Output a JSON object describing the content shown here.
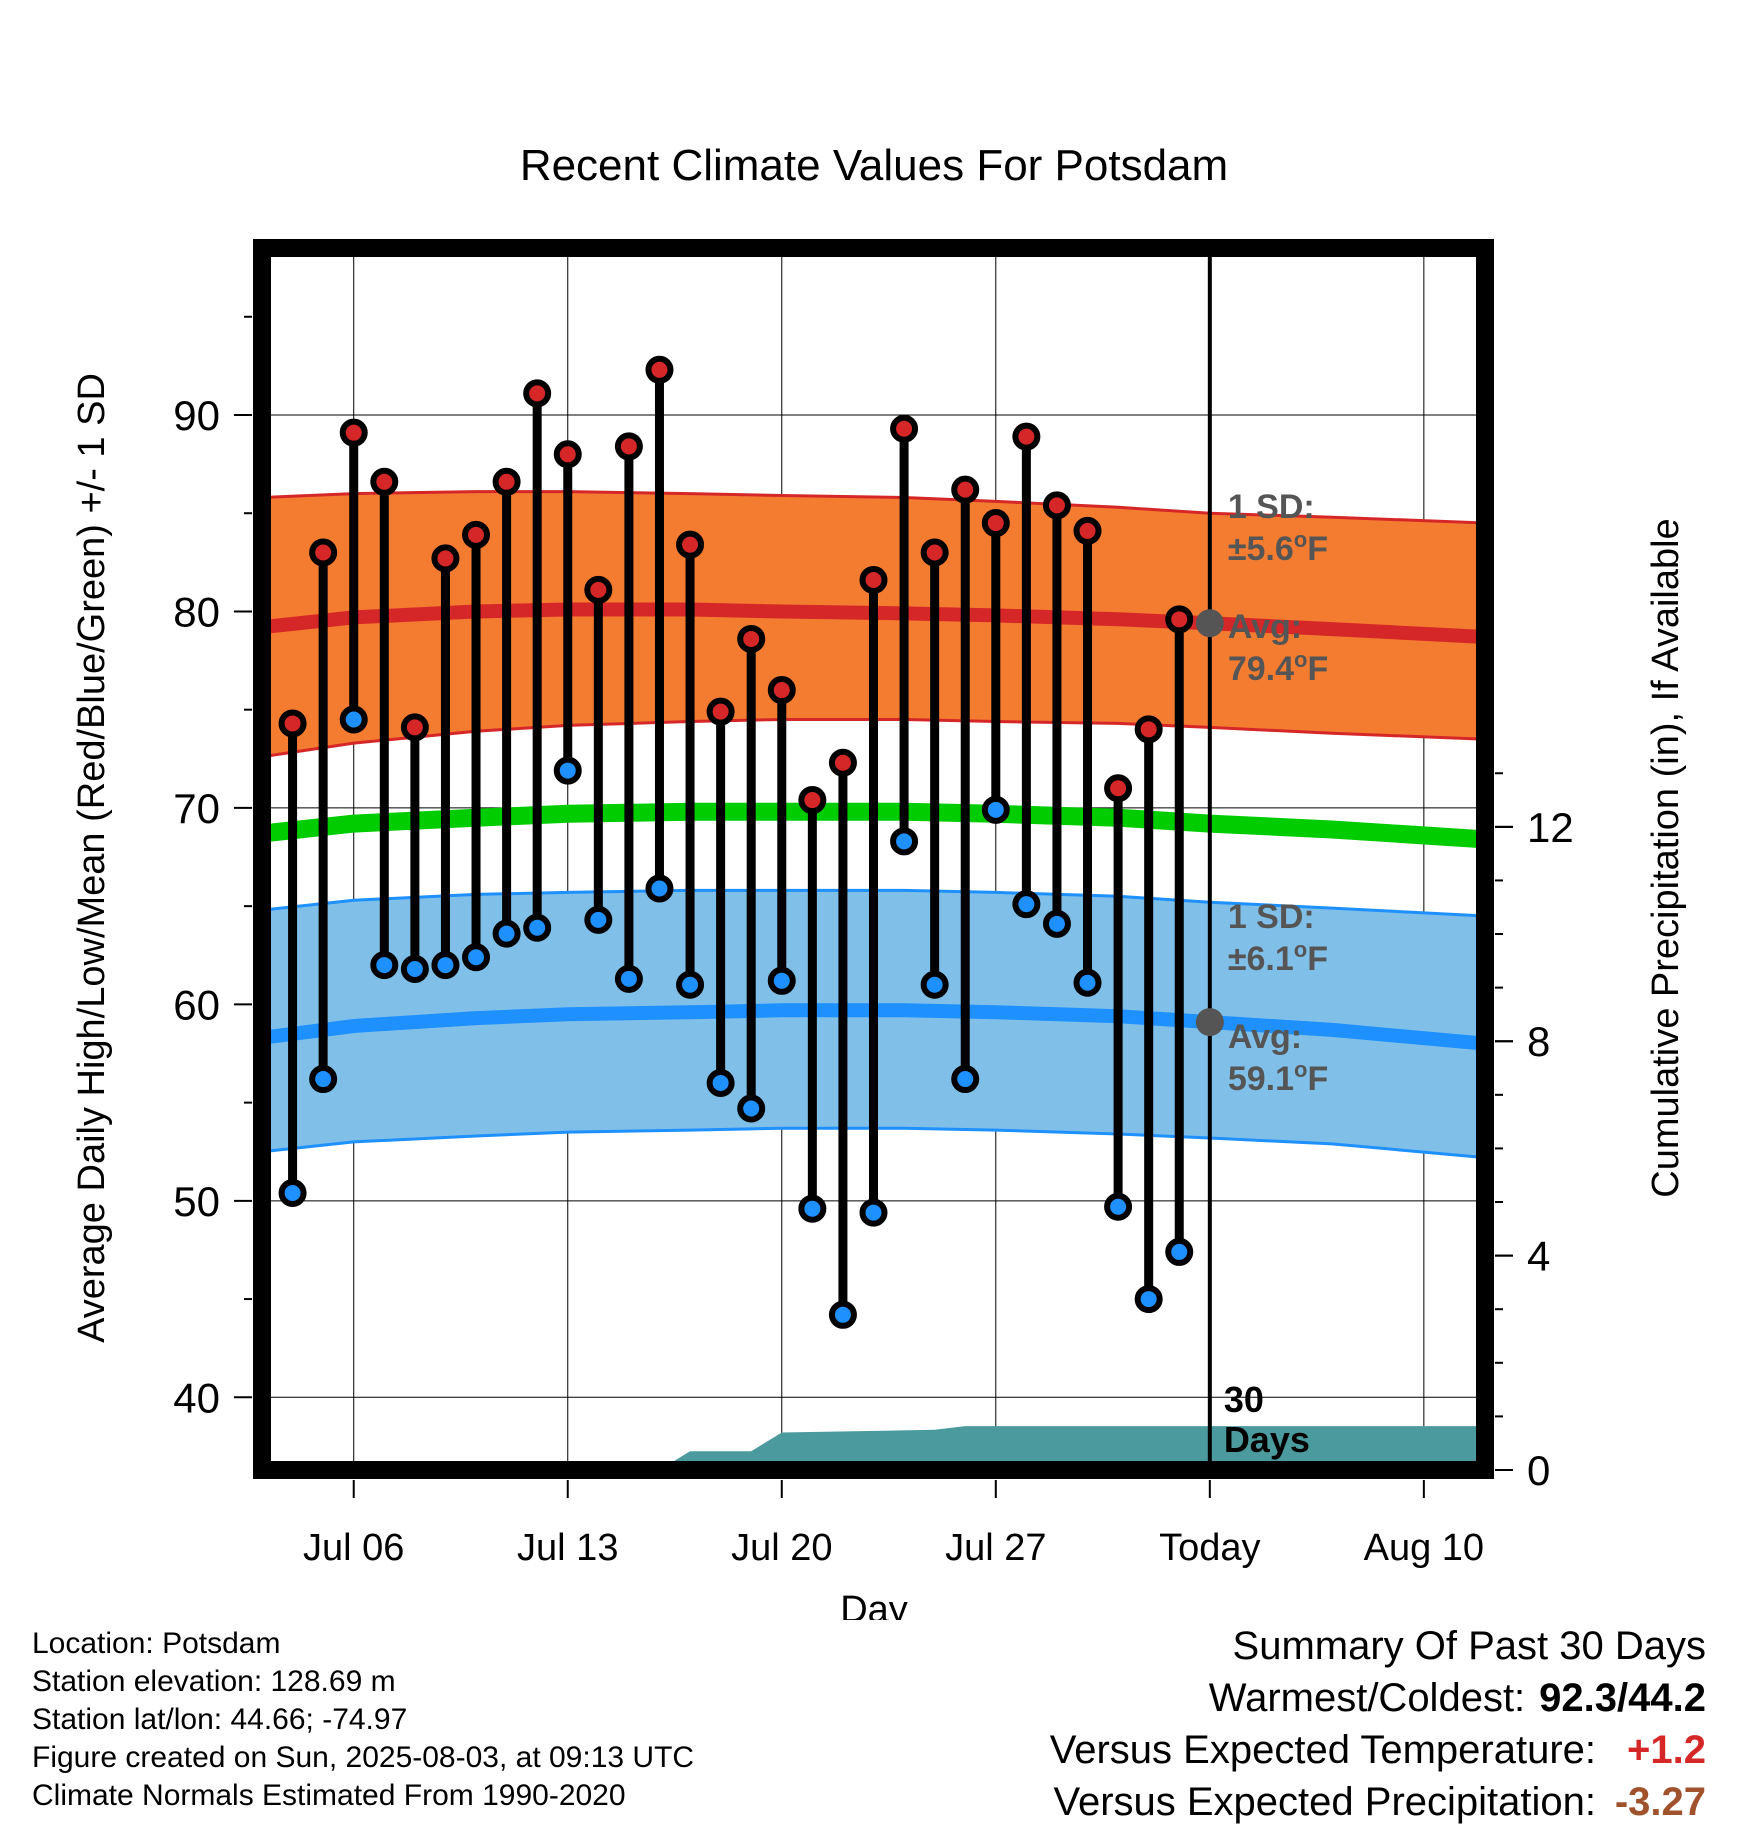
{
  "chart_data": {
    "type": "line",
    "title": "Recent Climate Values For Potsdam",
    "xlabel": "Day",
    "ylabel": "Average Daily High/Low/Mean (Red/Blue/Green) +/- 1 SD",
    "y2label": "Cumulative Precipitation (in), If Available",
    "ylim": [
      36.3,
      98.5
    ],
    "y2lim": [
      0,
      22.8
    ],
    "yticks": [
      40,
      50,
      60,
      70,
      80,
      90
    ],
    "y2ticks": [
      0,
      4,
      8,
      12
    ],
    "xlim": [
      "Jul 03",
      "Aug 12"
    ],
    "xticks": [
      {
        "date": "Jul 06",
        "label": "Jul 06"
      },
      {
        "date": "Jul 13",
        "label": "Jul 13"
      },
      {
        "date": "Jul 20",
        "label": "Jul 20"
      },
      {
        "date": "Jul 27",
        "label": "Jul 27"
      },
      {
        "date": "Aug 03",
        "label": "Today"
      },
      {
        "date": "Aug 10",
        "label": "Aug 10"
      }
    ],
    "grid": true,
    "today": "Aug 03",
    "today_label": [
      "30",
      "Days"
    ],
    "colors": {
      "high": "#d62728",
      "low": "#1e90ff",
      "mean": "#00cc00",
      "high_band": "#f47c31",
      "low_band": "#80c0e8",
      "precip": "#4a9a9e",
      "annotation": "#555555"
    },
    "daily": [
      {
        "date": "Jul 04",
        "high": 74.3,
        "low": 50.4
      },
      {
        "date": "Jul 05",
        "high": 83.0,
        "low": 56.2
      },
      {
        "date": "Jul 06",
        "high": 89.1,
        "low": 74.5
      },
      {
        "date": "Jul 07",
        "high": 86.6,
        "low": 62.0
      },
      {
        "date": "Jul 08",
        "high": 74.1,
        "low": 61.8
      },
      {
        "date": "Jul 09",
        "high": 82.7,
        "low": 62.0
      },
      {
        "date": "Jul 10",
        "high": 83.9,
        "low": 62.4
      },
      {
        "date": "Jul 11",
        "high": 86.6,
        "low": 63.6
      },
      {
        "date": "Jul 12",
        "high": 91.1,
        "low": 63.9
      },
      {
        "date": "Jul 13",
        "high": 88.0,
        "low": 71.9
      },
      {
        "date": "Jul 14",
        "high": 81.1,
        "low": 64.3
      },
      {
        "date": "Jul 15",
        "high": 88.4,
        "low": 61.3
      },
      {
        "date": "Jul 16",
        "high": 92.3,
        "low": 65.9
      },
      {
        "date": "Jul 17",
        "high": 83.4,
        "low": 61.0
      },
      {
        "date": "Jul 18",
        "high": 74.9,
        "low": 56.0
      },
      {
        "date": "Jul 19",
        "high": 78.6,
        "low": 54.7
      },
      {
        "date": "Jul 20",
        "high": 76.0,
        "low": 61.2
      },
      {
        "date": "Jul 21",
        "high": 70.4,
        "low": 49.6
      },
      {
        "date": "Jul 22",
        "high": 72.3,
        "low": 44.2
      },
      {
        "date": "Jul 23",
        "high": 81.6,
        "low": 49.4
      },
      {
        "date": "Jul 24",
        "high": 89.3,
        "low": 68.3
      },
      {
        "date": "Jul 25",
        "high": 83.0,
        "low": 61.0
      },
      {
        "date": "Jul 26",
        "high": 86.2,
        "low": 56.2
      },
      {
        "date": "Jul 27",
        "high": 84.5,
        "low": 69.9
      },
      {
        "date": "Jul 28",
        "high": 88.9,
        "low": 65.1
      },
      {
        "date": "Jul 29",
        "high": 85.4,
        "low": 64.1
      },
      {
        "date": "Jul 30",
        "high": 84.1,
        "low": 61.1
      },
      {
        "date": "Jul 31",
        "high": 71.0,
        "low": 49.7
      },
      {
        "date": "Aug 01",
        "high": 74.0,
        "low": 45.0
      },
      {
        "date": "Aug 02",
        "high": 79.6,
        "low": 47.4
      }
    ],
    "normals": {
      "dates": [
        "Jul 03",
        "Jul 06",
        "Jul 10",
        "Jul 13",
        "Jul 17",
        "Jul 20",
        "Jul 24",
        "Jul 27",
        "Jul 31",
        "Aug 03",
        "Aug 07",
        "Aug 12"
      ],
      "high_avg": [
        79.2,
        79.7,
        80.0,
        80.1,
        80.1,
        80.0,
        79.9,
        79.8,
        79.6,
        79.4,
        79.1,
        78.7
      ],
      "high_sd_upper": [
        85.8,
        86.0,
        86.1,
        86.1,
        86.0,
        85.9,
        85.8,
        85.6,
        85.3,
        85.0,
        84.8,
        84.5
      ],
      "high_sd_lower": [
        72.6,
        73.3,
        73.9,
        74.2,
        74.4,
        74.5,
        74.5,
        74.4,
        74.3,
        74.1,
        73.8,
        73.5
      ],
      "mean_avg": [
        68.7,
        69.2,
        69.5,
        69.7,
        69.8,
        69.8,
        69.8,
        69.7,
        69.5,
        69.2,
        68.9,
        68.4
      ],
      "low_avg": [
        58.3,
        58.9,
        59.3,
        59.5,
        59.6,
        59.7,
        59.7,
        59.6,
        59.4,
        59.1,
        58.7,
        58.0
      ],
      "low_sd_upper": [
        64.8,
        65.3,
        65.6,
        65.7,
        65.8,
        65.8,
        65.8,
        65.7,
        65.5,
        65.2,
        64.9,
        64.5
      ],
      "low_sd_lower": [
        52.5,
        53.0,
        53.3,
        53.5,
        53.6,
        53.7,
        53.7,
        53.6,
        53.4,
        53.2,
        52.9,
        52.2
      ]
    },
    "precip_cumulative": {
      "dates": [
        "Jul 03",
        "Jul 16",
        "Jul 17",
        "Jul 19",
        "Jul 20",
        "Jul 25",
        "Jul 26",
        "Aug 12"
      ],
      "values": [
        0,
        0,
        0.35,
        0.35,
        0.7,
        0.75,
        0.82,
        0.82
      ]
    },
    "annotations": {
      "high": {
        "sd": "±5.6",
        "avg": "79.4",
        "value": 79.4
      },
      "low": {
        "sd": "±6.1",
        "avg": "59.1",
        "value": 59.1
      },
      "sd_prefix": "1 SD:",
      "avg_prefix": "Avg:",
      "unit_deg": "o",
      "unit_f": "F"
    }
  },
  "info": {
    "location": "Location: Potsdam",
    "elevation": "Station elevation: 128.69 m",
    "latlon": "Station lat/lon: 44.66; -74.97",
    "created": "Figure created on Sun, 2025-08-03, at 09:13 UTC",
    "normals": "Climate Normals Estimated From 1990-2020"
  },
  "summary": {
    "title": "Summary Of Past 30 Days",
    "warmest_coldest_label": "Warmest/Coldest:",
    "warmest_coldest_value": "92.3/44.2",
    "temp_label": "Versus Expected Temperature:",
    "temp_value": "+1.2",
    "temp_color": "#d62728",
    "precip_label": "Versus Expected Precipitation:",
    "precip_value": "-3.27",
    "precip_color": "#a0522d"
  }
}
